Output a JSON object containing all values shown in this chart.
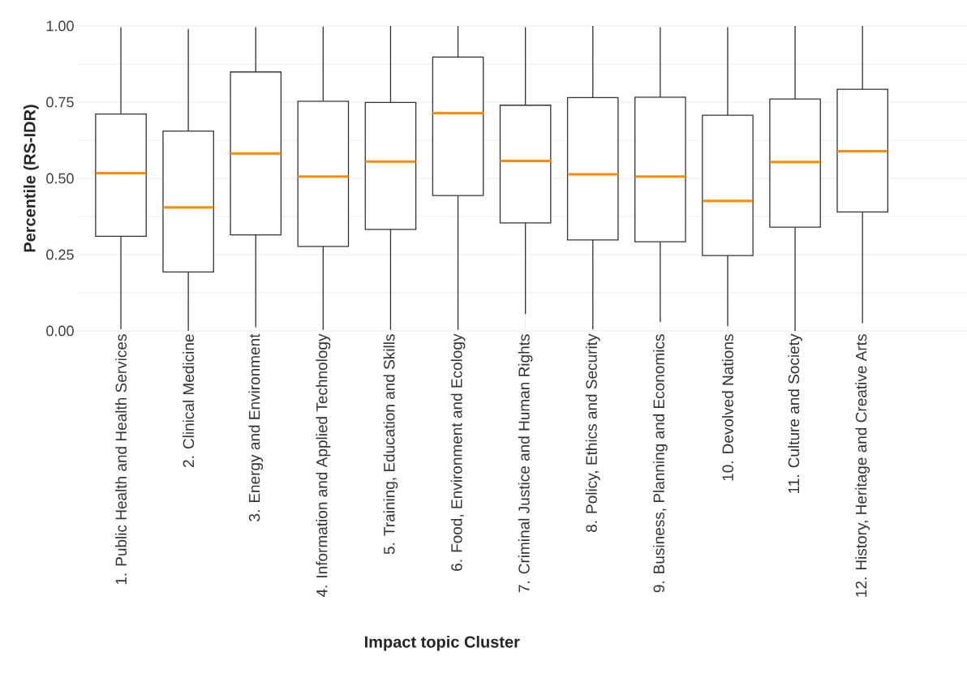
{
  "chart_data": {
    "type": "box",
    "xlabel": "Impact topic Cluster",
    "ylabel": "Percentile (RS-IDR)",
    "categories": [
      "1. Public Health and Health Services",
      "2. Clinical Medicine",
      "3. Energy and Environment",
      "4. Information and Applied Technology",
      "5. Training, Education and Skills",
      "6. Food, Environment and Ecology",
      "7. Criminal Justice and Human Rights",
      "8. Policy, Ethics and Security",
      "9. Business, Planning and Economics",
      "10. Devolved Nations",
      "11. Culture and Society",
      "12. History, Heritage and Creative Arts"
    ],
    "boxes": [
      {
        "low": 0.005,
        "q1": 0.31,
        "median": 0.517,
        "q3": 0.711,
        "high": 0.995
      },
      {
        "low": 0.0,
        "q1": 0.193,
        "median": 0.405,
        "q3": 0.655,
        "high": 0.99
      },
      {
        "low": 0.012,
        "q1": 0.315,
        "median": 0.582,
        "q3": 0.849,
        "high": 0.996
      },
      {
        "low": 0.003,
        "q1": 0.277,
        "median": 0.506,
        "q3": 0.753,
        "high": 0.998
      },
      {
        "low": 0.003,
        "q1": 0.333,
        "median": 0.555,
        "q3": 0.749,
        "high": 1.0
      },
      {
        "low": 0.003,
        "q1": 0.444,
        "median": 0.714,
        "q3": 0.898,
        "high": 1.0
      },
      {
        "low": 0.055,
        "q1": 0.354,
        "median": 0.557,
        "q3": 0.74,
        "high": 0.996
      },
      {
        "low": 0.005,
        "q1": 0.298,
        "median": 0.513,
        "q3": 0.765,
        "high": 1.0
      },
      {
        "low": 0.029,
        "q1": 0.292,
        "median": 0.506,
        "q3": 0.766,
        "high": 0.995
      },
      {
        "low": 0.016,
        "q1": 0.247,
        "median": 0.426,
        "q3": 0.707,
        "high": 0.996
      },
      {
        "low": 0.0,
        "q1": 0.34,
        "median": 0.554,
        "q3": 0.76,
        "high": 1.0
      },
      {
        "low": 0.025,
        "q1": 0.39,
        "median": 0.589,
        "q3": 0.792,
        "high": 1.0
      }
    ],
    "ylim": [
      0,
      1
    ],
    "yticks": [
      {
        "value": 0,
        "label": "0.00"
      },
      {
        "value": 0.125,
        "label": null
      },
      {
        "value": 0.25,
        "label": "0.25"
      },
      {
        "value": 0.375,
        "label": null
      },
      {
        "value": 0.5,
        "label": "0.50"
      },
      {
        "value": 0.625,
        "label": null
      },
      {
        "value": 0.75,
        "label": "0.75"
      },
      {
        "value": 0.875,
        "label": null
      },
      {
        "value": 1,
        "label": "1.00"
      }
    ],
    "grid": true
  }
}
